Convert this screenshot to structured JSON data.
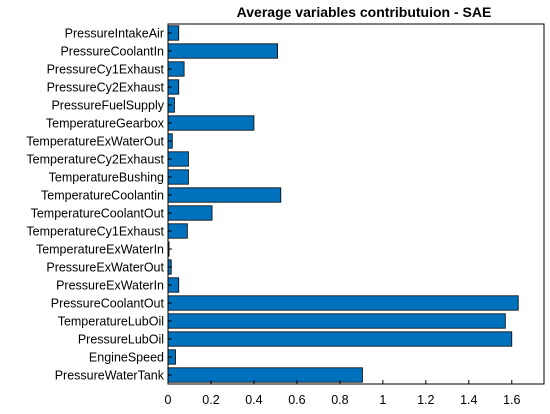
{
  "chart_data": {
    "type": "bar",
    "orientation": "horizontal",
    "title": "Average variables contributuion - SAE",
    "xlabel": "",
    "ylabel": "",
    "xlim": [
      0,
      1.75
    ],
    "xticks": [
      0,
      0.2,
      0.4,
      0.6,
      0.8,
      1,
      1.2,
      1.4,
      1.6
    ],
    "xtick_labels": [
      "0",
      "0.2",
      "0.4",
      "0.6",
      "0.8",
      "1",
      "1.2",
      "1.4",
      "1.6"
    ],
    "grid": false,
    "bar_color": "#0072BD",
    "edge_color": "#000000",
    "categories": [
      "PressureIntakeAir",
      "PressureCoolantIn",
      "PressureCy1Exhaust",
      "PressureCy2Exhaust",
      "PressureFuelSupply",
      "TemperatureGearbox",
      "TemperatureExWaterOut",
      "TemperatureCy2Exhaust",
      "TemperatureBushing",
      "TemperatureCoolantin",
      "TemperatureCoolantOut",
      "TemperatureCy1Exhaust",
      "TemperatureExWaterIn",
      "PressureExWaterOut",
      "PressureExWaterIn",
      "PressureCoolantOut",
      "TemperatureLubOil",
      "PressureLubOil",
      "EngineSpeed",
      "PressureWaterTank"
    ],
    "values": [
      0.05,
      0.51,
      0.075,
      0.05,
      0.03,
      0.4,
      0.02,
      0.095,
      0.095,
      0.525,
      0.205,
      0.09,
      0.005,
      0.015,
      0.05,
      1.63,
      1.57,
      1.6,
      0.035,
      0.905
    ]
  }
}
